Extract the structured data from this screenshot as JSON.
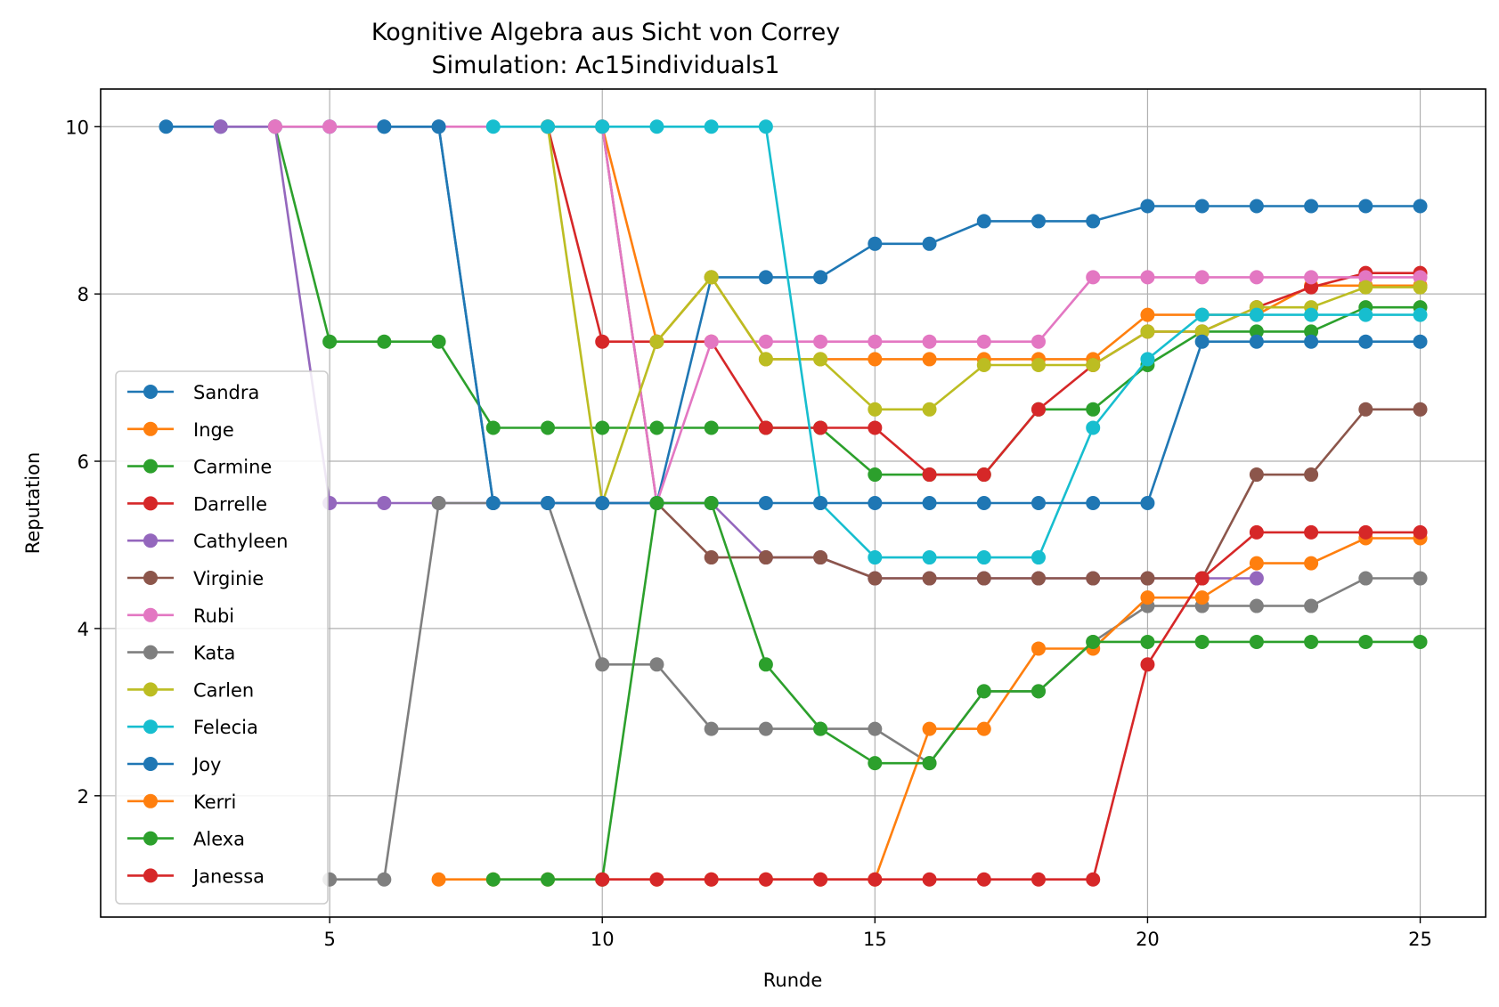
{
  "chart_data": {
    "type": "line",
    "title": "Kognitive Algebra aus Sicht von Correy",
    "subtitle": "Simulation: Ac15individuals1",
    "xlabel": "Runde",
    "ylabel": "Reputation",
    "xlim": [
      0.8,
      26.2
    ],
    "ylim": [
      0.55,
      10.45
    ],
    "xticks": [
      5,
      10,
      15,
      20,
      25
    ],
    "yticks": [
      2,
      4,
      6,
      8,
      10
    ],
    "grid": true,
    "legend_position": "lower-left",
    "series": [
      {
        "name": "Sandra",
        "color": "#1f77b4",
        "points": [
          [
            2,
            10
          ],
          [
            3,
            10
          ],
          [
            4,
            10
          ],
          [
            5,
            10
          ],
          [
            6,
            10
          ],
          [
            7,
            10
          ],
          [
            8,
            5.5
          ],
          [
            9,
            5.5
          ],
          [
            10,
            5.5
          ],
          [
            11,
            5.5
          ],
          [
            12,
            8.2
          ],
          [
            13,
            8.2
          ],
          [
            14,
            8.2
          ],
          [
            15,
            8.6
          ],
          [
            16,
            8.6
          ],
          [
            17,
            8.87
          ],
          [
            18,
            8.87
          ],
          [
            19,
            8.87
          ],
          [
            20,
            9.05
          ],
          [
            21,
            9.05
          ],
          [
            22,
            9.05
          ],
          [
            23,
            9.05
          ],
          [
            24,
            9.05
          ],
          [
            25,
            9.05
          ]
        ]
      },
      {
        "name": "Inge",
        "color": "#ff7f0e",
        "points": [
          [
            9,
            10
          ],
          [
            10,
            10
          ],
          [
            11,
            7.43
          ],
          [
            12,
            8.2
          ],
          [
            13,
            7.22
          ],
          [
            14,
            7.22
          ],
          [
            15,
            7.22
          ],
          [
            16,
            7.22
          ],
          [
            17,
            7.22
          ],
          [
            18,
            7.22
          ],
          [
            19,
            7.22
          ],
          [
            20,
            7.75
          ],
          [
            21,
            7.75
          ],
          [
            22,
            7.75
          ],
          [
            23,
            8.1
          ],
          [
            24,
            8.1
          ],
          [
            25,
            8.1
          ]
        ]
      },
      {
        "name": "Carmine",
        "color": "#2ca02c",
        "points": [
          [
            4,
            10
          ],
          [
            5,
            7.43
          ],
          [
            6,
            7.43
          ],
          [
            7,
            7.43
          ],
          [
            8,
            6.4
          ],
          [
            9,
            6.4
          ],
          [
            10,
            6.4
          ],
          [
            11,
            6.4
          ],
          [
            12,
            6.4
          ],
          [
            13,
            6.4
          ],
          [
            14,
            6.4
          ],
          [
            15,
            5.84
          ],
          [
            16,
            5.84
          ],
          [
            17,
            5.84
          ],
          [
            18,
            6.62
          ],
          [
            19,
            6.62
          ],
          [
            20,
            7.15
          ],
          [
            21,
            7.55
          ],
          [
            22,
            7.55
          ],
          [
            23,
            7.55
          ],
          [
            24,
            7.84
          ],
          [
            25,
            7.84
          ]
        ]
      },
      {
        "name": "Darrelle",
        "color": "#d62728",
        "points": [
          [
            9,
            10
          ],
          [
            10,
            7.43
          ],
          [
            11,
            7.43
          ],
          [
            12,
            7.43
          ],
          [
            13,
            6.4
          ],
          [
            14,
            6.4
          ],
          [
            15,
            6.4
          ],
          [
            16,
            5.84
          ],
          [
            17,
            5.84
          ],
          [
            18,
            6.62
          ],
          [
            19,
            7.15
          ],
          [
            20,
            7.55
          ],
          [
            21,
            7.55
          ],
          [
            22,
            7.84
          ],
          [
            23,
            8.08
          ],
          [
            24,
            8.25
          ],
          [
            25,
            8.25
          ]
        ]
      },
      {
        "name": "Cathyleen",
        "color": "#9467bd",
        "points": [
          [
            3,
            10
          ],
          [
            4,
            10
          ],
          [
            5,
            5.5
          ],
          [
            6,
            5.5
          ],
          [
            7,
            5.5
          ],
          [
            8,
            5.5
          ],
          [
            9,
            5.5
          ],
          [
            10,
            5.5
          ],
          [
            11,
            5.5
          ],
          [
            12,
            5.5
          ],
          [
            13,
            4.85
          ],
          [
            14,
            4.85
          ],
          [
            15,
            4.6
          ],
          [
            16,
            4.6
          ],
          [
            17,
            4.6
          ],
          [
            18,
            4.6
          ],
          [
            19,
            4.6
          ],
          [
            20,
            4.6
          ],
          [
            21,
            4.6
          ],
          [
            22,
            4.6
          ]
        ]
      },
      {
        "name": "Virginie",
        "color": "#8c564b",
        "points": [
          [
            10,
            10
          ],
          [
            11,
            5.5
          ],
          [
            12,
            4.85
          ],
          [
            13,
            4.85
          ],
          [
            14,
            4.85
          ],
          [
            15,
            4.6
          ],
          [
            16,
            4.6
          ],
          [
            17,
            4.6
          ],
          [
            18,
            4.6
          ],
          [
            19,
            4.6
          ],
          [
            20,
            4.6
          ],
          [
            21,
            4.6
          ],
          [
            22,
            5.84
          ],
          [
            23,
            5.84
          ],
          [
            24,
            6.62
          ],
          [
            25,
            6.62
          ]
        ]
      },
      {
        "name": "Rubi",
        "color": "#e377c2",
        "points": [
          [
            4,
            10
          ],
          [
            5,
            10
          ],
          [
            10,
            10
          ],
          [
            11,
            5.5
          ],
          [
            12,
            7.43
          ],
          [
            13,
            7.43
          ],
          [
            14,
            7.43
          ],
          [
            15,
            7.43
          ],
          [
            16,
            7.43
          ],
          [
            17,
            7.43
          ],
          [
            18,
            7.43
          ],
          [
            19,
            8.2
          ],
          [
            20,
            8.2
          ],
          [
            21,
            8.2
          ],
          [
            22,
            8.2
          ],
          [
            23,
            8.2
          ],
          [
            24,
            8.2
          ],
          [
            25,
            8.2
          ]
        ]
      },
      {
        "name": "Kata",
        "color": "#7f7f7f",
        "points": [
          [
            5,
            1
          ],
          [
            6,
            1
          ],
          [
            7,
            5.5
          ],
          [
            8,
            5.5
          ],
          [
            9,
            5.5
          ],
          [
            10,
            3.57
          ],
          [
            11,
            3.57
          ],
          [
            12,
            2.8
          ],
          [
            13,
            2.8
          ],
          [
            14,
            2.8
          ],
          [
            15,
            2.8
          ],
          [
            16,
            2.39
          ],
          [
            17,
            3.25
          ],
          [
            18,
            3.25
          ],
          [
            19,
            3.84
          ],
          [
            20,
            4.27
          ],
          [
            21,
            4.27
          ],
          [
            22,
            4.27
          ],
          [
            23,
            4.27
          ],
          [
            24,
            4.6
          ],
          [
            25,
            4.6
          ]
        ]
      },
      {
        "name": "Carlen",
        "color": "#bcbd22",
        "points": [
          [
            9,
            10
          ],
          [
            10,
            5.5
          ],
          [
            11,
            7.43
          ],
          [
            12,
            8.2
          ],
          [
            13,
            7.22
          ],
          [
            14,
            7.22
          ],
          [
            15,
            6.62
          ],
          [
            16,
            6.62
          ],
          [
            17,
            7.15
          ],
          [
            18,
            7.15
          ],
          [
            19,
            7.15
          ],
          [
            20,
            7.55
          ],
          [
            21,
            7.55
          ],
          [
            22,
            7.84
          ],
          [
            23,
            7.84
          ],
          [
            24,
            8.08
          ],
          [
            25,
            8.08
          ]
        ]
      },
      {
        "name": "Felecia",
        "color": "#17becf",
        "points": [
          [
            8,
            10
          ],
          [
            9,
            10
          ],
          [
            10,
            10
          ],
          [
            11,
            10
          ],
          [
            12,
            10
          ],
          [
            13,
            10
          ],
          [
            14,
            5.5
          ],
          [
            15,
            4.85
          ],
          [
            16,
            4.85
          ],
          [
            17,
            4.85
          ],
          [
            18,
            4.85
          ],
          [
            19,
            6.4
          ],
          [
            20,
            7.22
          ],
          [
            21,
            7.75
          ],
          [
            22,
            7.75
          ],
          [
            23,
            7.75
          ],
          [
            24,
            7.75
          ],
          [
            25,
            7.75
          ]
        ]
      },
      {
        "name": "Joy",
        "color": "#1f77b4",
        "points": [
          [
            6,
            10
          ],
          [
            7,
            10
          ],
          [
            8,
            5.5
          ],
          [
            9,
            5.5
          ],
          [
            10,
            5.5
          ],
          [
            11,
            5.5
          ],
          [
            12,
            5.5
          ],
          [
            13,
            5.5
          ],
          [
            14,
            5.5
          ],
          [
            15,
            5.5
          ],
          [
            16,
            5.5
          ],
          [
            17,
            5.5
          ],
          [
            18,
            5.5
          ],
          [
            19,
            5.5
          ],
          [
            20,
            5.5
          ],
          [
            21,
            7.43
          ],
          [
            22,
            7.43
          ],
          [
            23,
            7.43
          ],
          [
            24,
            7.43
          ],
          [
            25,
            7.43
          ]
        ]
      },
      {
        "name": "Kerri",
        "color": "#ff7f0e",
        "points": [
          [
            7,
            1
          ],
          [
            8,
            1
          ],
          [
            9,
            1
          ],
          [
            10,
            1
          ],
          [
            11,
            1
          ],
          [
            12,
            1
          ],
          [
            13,
            1
          ],
          [
            14,
            1
          ],
          [
            15,
            1
          ],
          [
            16,
            2.8
          ],
          [
            17,
            2.8
          ],
          [
            18,
            3.76
          ],
          [
            19,
            3.76
          ],
          [
            20,
            4.37
          ],
          [
            21,
            4.37
          ],
          [
            22,
            4.78
          ],
          [
            23,
            4.78
          ],
          [
            24,
            5.08
          ],
          [
            25,
            5.08
          ]
        ]
      },
      {
        "name": "Alexa",
        "color": "#2ca02c",
        "points": [
          [
            8,
            1
          ],
          [
            9,
            1
          ],
          [
            10,
            1
          ],
          [
            11,
            5.5
          ],
          [
            12,
            5.5
          ],
          [
            13,
            3.57
          ],
          [
            14,
            2.8
          ],
          [
            15,
            2.39
          ],
          [
            16,
            2.39
          ],
          [
            17,
            3.25
          ],
          [
            18,
            3.25
          ],
          [
            19,
            3.84
          ],
          [
            20,
            3.84
          ],
          [
            21,
            3.84
          ],
          [
            22,
            3.84
          ],
          [
            23,
            3.84
          ],
          [
            24,
            3.84
          ],
          [
            25,
            3.84
          ]
        ]
      },
      {
        "name": "Janessa",
        "color": "#d62728",
        "points": [
          [
            10,
            1
          ],
          [
            11,
            1
          ],
          [
            12,
            1
          ],
          [
            13,
            1
          ],
          [
            14,
            1
          ],
          [
            15,
            1
          ],
          [
            16,
            1
          ],
          [
            17,
            1
          ],
          [
            18,
            1
          ],
          [
            19,
            1
          ],
          [
            20,
            3.57
          ],
          [
            21,
            4.6
          ],
          [
            22,
            5.15
          ],
          [
            23,
            5.15
          ],
          [
            24,
            5.15
          ],
          [
            25,
            5.15
          ]
        ]
      }
    ]
  }
}
